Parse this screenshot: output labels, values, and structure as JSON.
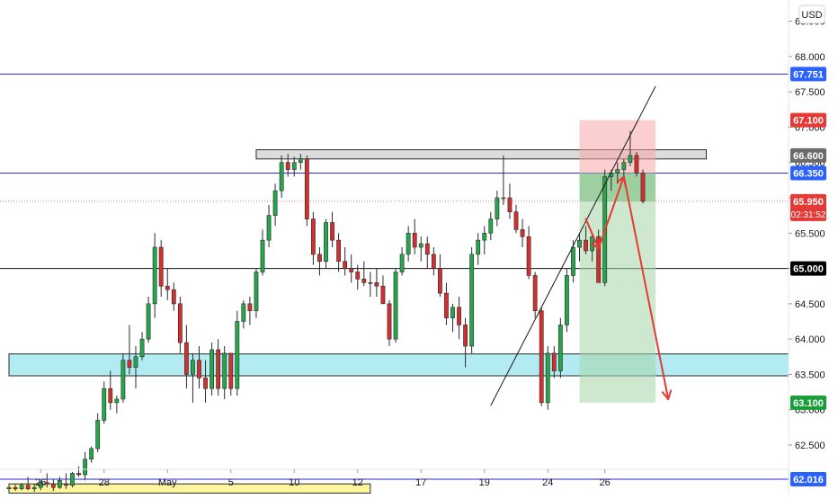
{
  "chart_data": {
    "type": "candlestick",
    "currency": "USD",
    "ylim": [
      61.8,
      68.8
    ],
    "y_ticks": [
      62.5,
      63.0,
      63.5,
      64.0,
      64.5,
      65.0,
      65.5,
      66.0,
      66.5,
      67.0,
      67.5,
      68.0,
      68.5
    ],
    "x_tick_labels": [
      {
        "label": "26",
        "bar": 5
      },
      {
        "label": "28",
        "bar": 15
      },
      {
        "label": "May",
        "bar": 25
      },
      {
        "label": "5",
        "bar": 35
      },
      {
        "label": "10",
        "bar": 45
      },
      {
        "label": "12",
        "bar": 55
      },
      {
        "label": "17",
        "bar": 65
      },
      {
        "label": "19",
        "bar": 75
      },
      {
        "label": "24",
        "bar": 85
      },
      {
        "label": "26",
        "bar": 94
      }
    ],
    "price_badges": [
      {
        "value": "67.751",
        "color": "#2962ff"
      },
      {
        "value": "67.100",
        "color": "#e53935"
      },
      {
        "value": "66.600",
        "color": "#6b6b6b"
      },
      {
        "value": "66.350",
        "color": "#2962ff"
      },
      {
        "value": "65.950",
        "timer": "02:31:52",
        "color": "#e53935"
      },
      {
        "value": "65.000",
        "color": "#000000"
      },
      {
        "value": "63.100",
        "color": "#1b9e3a"
      },
      {
        "value": "62.016",
        "color": "#2962ff"
      }
    ],
    "horizontal_lines": [
      {
        "price": 67.751,
        "color": "#2a2ad8"
      },
      {
        "price": 66.35,
        "color": "#2a2ad8"
      },
      {
        "price": 65.0,
        "color": "#111111"
      },
      {
        "price": 62.016,
        "color": "#2a2ad8"
      }
    ],
    "zones": [
      {
        "kind": "resistance",
        "from_bar": 39,
        "to_bar": 110,
        "low": 66.55,
        "high": 66.68,
        "color": "#dcdcdc"
      },
      {
        "kind": "support",
        "from_bar": 0,
        "to_bar": 130,
        "low": 63.48,
        "high": 63.79,
        "color": "#b2ebf2"
      },
      {
        "kind": "base",
        "from_bar": 0,
        "to_bar": 57,
        "low": 61.82,
        "high": 61.95,
        "color": "#fff59d"
      }
    ],
    "trade_setup": {
      "direction": "short",
      "entry": 66.35,
      "stop": 67.1,
      "target": 63.1,
      "from_bar": 90,
      "to_bar": 102,
      "current_price": 65.95
    },
    "trendline": {
      "from": {
        "bar": 76,
        "price": 63.06
      },
      "to": {
        "bar": 102,
        "price": 67.58
      }
    },
    "projection_path": [
      {
        "bar": 91,
        "price": 65.7
      },
      {
        "bar": 93,
        "price": 65.28
      },
      {
        "bar": 97,
        "price": 66.3
      },
      {
        "bar": 104,
        "price": 63.15
      }
    ],
    "candles": [
      [
        61.88,
        61.92,
        61.86,
        61.9
      ],
      [
        61.9,
        61.95,
        61.85,
        61.88
      ],
      [
        61.88,
        61.96,
        61.86,
        61.93
      ],
      [
        61.93,
        62.05,
        61.86,
        61.88
      ],
      [
        61.88,
        61.95,
        61.84,
        61.9
      ],
      [
        61.9,
        62.0,
        61.86,
        61.97
      ],
      [
        61.97,
        62.1,
        61.9,
        61.95
      ],
      [
        61.95,
        62.02,
        61.85,
        61.9
      ],
      [
        61.9,
        62.05,
        61.88,
        62.0
      ],
      [
        61.95,
        62.1,
        61.88,
        61.93
      ],
      [
        61.93,
        62.12,
        61.9,
        62.1
      ],
      [
        62.1,
        62.2,
        62.05,
        62.08
      ],
      [
        62.08,
        62.4,
        62.0,
        62.3
      ],
      [
        62.3,
        62.48,
        62.25,
        62.45
      ],
      [
        62.45,
        62.95,
        62.4,
        62.85
      ],
      [
        62.85,
        63.4,
        62.8,
        63.3
      ],
      [
        63.3,
        63.55,
        63.0,
        63.1
      ],
      [
        63.1,
        63.2,
        62.95,
        63.15
      ],
      [
        63.15,
        63.8,
        63.1,
        63.7
      ],
      [
        63.7,
        64.2,
        63.5,
        63.6
      ],
      [
        63.6,
        63.9,
        63.3,
        63.75
      ],
      [
        63.75,
        64.1,
        63.7,
        64.0
      ],
      [
        64.0,
        64.6,
        63.95,
        64.5
      ],
      [
        64.5,
        65.5,
        64.3,
        65.3
      ],
      [
        65.3,
        65.4,
        64.6,
        64.75
      ],
      [
        64.75,
        65.0,
        64.55,
        64.7
      ],
      [
        64.7,
        64.8,
        64.4,
        64.5
      ],
      [
        64.5,
        64.6,
        63.8,
        63.95
      ],
      [
        63.95,
        64.2,
        63.3,
        63.5
      ],
      [
        63.5,
        63.8,
        63.1,
        63.7
      ],
      [
        63.7,
        63.9,
        63.3,
        63.45
      ],
      [
        63.45,
        63.7,
        63.1,
        63.3
      ],
      [
        63.3,
        63.95,
        63.2,
        63.85
      ],
      [
        63.85,
        64.0,
        63.2,
        63.3
      ],
      [
        63.3,
        63.9,
        63.15,
        63.8
      ],
      [
        63.8,
        63.8,
        63.2,
        63.3
      ],
      [
        63.3,
        64.4,
        63.2,
        64.25
      ],
      [
        64.25,
        64.55,
        64.15,
        64.5
      ],
      [
        64.5,
        64.6,
        64.2,
        64.4
      ],
      [
        64.4,
        65.0,
        64.3,
        64.95
      ],
      [
        64.95,
        65.55,
        64.9,
        65.4
      ],
      [
        65.4,
        65.9,
        65.3,
        65.75
      ],
      [
        65.75,
        66.2,
        65.6,
        66.1
      ],
      [
        66.1,
        66.6,
        66.0,
        66.5
      ],
      [
        66.5,
        66.62,
        66.3,
        66.4
      ],
      [
        66.4,
        66.58,
        66.3,
        66.5
      ],
      [
        66.5,
        66.62,
        66.4,
        66.55
      ],
      [
        66.55,
        66.6,
        65.6,
        65.7
      ],
      [
        65.7,
        65.8,
        65.05,
        65.2
      ],
      [
        65.2,
        65.3,
        64.9,
        65.1
      ],
      [
        65.1,
        65.7,
        65.0,
        65.65
      ],
      [
        65.65,
        65.8,
        65.3,
        65.4
      ],
      [
        65.4,
        65.5,
        64.95,
        65.1
      ],
      [
        65.1,
        65.3,
        64.9,
        65.0
      ],
      [
        65.0,
        65.2,
        64.8,
        64.95
      ],
      [
        64.95,
        65.05,
        64.7,
        64.85
      ],
      [
        64.85,
        65.1,
        64.75,
        64.8
      ],
      [
        64.8,
        64.95,
        64.6,
        64.8
      ],
      [
        64.8,
        65.0,
        64.6,
        64.75
      ],
      [
        64.75,
        64.9,
        64.5,
        64.5
      ],
      [
        64.5,
        64.55,
        63.9,
        64.0
      ],
      [
        64.0,
        65.0,
        63.95,
        64.95
      ],
      [
        64.95,
        65.3,
        64.9,
        65.2
      ],
      [
        65.2,
        65.6,
        65.1,
        65.5
      ],
      [
        65.5,
        65.7,
        65.2,
        65.3
      ],
      [
        65.3,
        65.45,
        65.1,
        65.35
      ],
      [
        65.35,
        65.45,
        65.0,
        65.2
      ],
      [
        65.2,
        65.3,
        64.9,
        65.0
      ],
      [
        65.0,
        65.2,
        64.6,
        64.65
      ],
      [
        64.65,
        64.8,
        64.2,
        64.3
      ],
      [
        64.3,
        64.5,
        64.1,
        64.45
      ],
      [
        64.45,
        64.6,
        64.0,
        64.2
      ],
      [
        64.2,
        64.3,
        63.6,
        63.9
      ],
      [
        63.9,
        65.3,
        63.8,
        65.2
      ],
      [
        65.2,
        65.5,
        65.05,
        65.4
      ],
      [
        65.4,
        65.6,
        65.2,
        65.5
      ],
      [
        65.5,
        65.8,
        65.4,
        65.7
      ],
      [
        65.7,
        66.1,
        65.6,
        66.0
      ],
      [
        66.0,
        66.6,
        65.9,
        66.0
      ],
      [
        66.0,
        66.2,
        65.7,
        65.8
      ],
      [
        65.8,
        65.9,
        65.5,
        65.55
      ],
      [
        65.55,
        65.7,
        65.3,
        65.45
      ],
      [
        65.45,
        65.6,
        64.85,
        64.9
      ],
      [
        64.9,
        64.95,
        64.3,
        64.4
      ],
      [
        64.4,
        64.45,
        63.05,
        63.1
      ],
      [
        63.1,
        63.9,
        63.0,
        63.8
      ],
      [
        63.8,
        63.9,
        63.45,
        63.55
      ],
      [
        63.55,
        64.3,
        63.45,
        64.2
      ],
      [
        64.2,
        65.0,
        64.1,
        64.9
      ],
      [
        64.9,
        65.4,
        64.8,
        65.3
      ],
      [
        65.3,
        65.5,
        65.1,
        65.4
      ],
      [
        65.4,
        65.6,
        65.2,
        65.25
      ],
      [
        65.25,
        65.5,
        65.1,
        65.45
      ],
      [
        65.45,
        65.55,
        64.8,
        64.8
      ],
      [
        64.8,
        66.4,
        64.75,
        66.3
      ],
      [
        66.3,
        66.4,
        66.1,
        66.35
      ],
      [
        66.35,
        66.5,
        66.2,
        66.4
      ],
      [
        66.4,
        66.55,
        66.3,
        66.5
      ],
      [
        66.5,
        66.95,
        66.45,
        66.6
      ],
      [
        66.6,
        66.65,
        66.3,
        66.35
      ],
      [
        66.35,
        66.4,
        65.92,
        65.95
      ]
    ],
    "bull_color": "#26a64b",
    "bear_color": "#d32f2f"
  }
}
